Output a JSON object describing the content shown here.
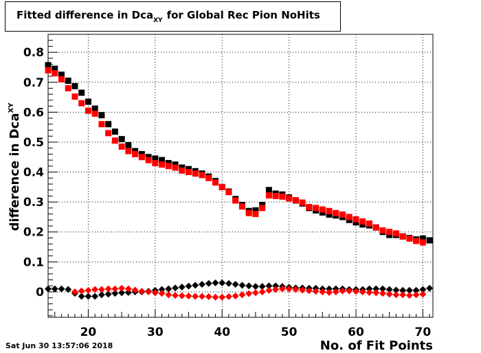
{
  "chart_data": {
    "type": "scatter",
    "title": {
      "main": "Fitted difference in Dca",
      "subscript": "XY",
      "rest": "for Global Rec Pion NoHits"
    },
    "xlabel": "No. of Fit Points",
    "ylabel": {
      "main": "difference in Dca",
      "subscript": "XY"
    },
    "xlim": [
      14,
      71.5
    ],
    "ylim": [
      -0.085,
      0.86
    ],
    "xticks": [
      20,
      30,
      40,
      50,
      60,
      70
    ],
    "yticks": [
      0,
      0.1,
      0.2,
      0.3,
      0.4,
      0.5,
      0.6,
      0.7,
      0.8
    ],
    "ytick_labels": [
      "0",
      "0.1",
      "0.2",
      "0.3",
      "0.4",
      "0.5",
      "0.6",
      "0.7",
      "0.8"
    ],
    "grid": true,
    "x": [
      14,
      15,
      16,
      17,
      18,
      19,
      20,
      21,
      22,
      23,
      24,
      25,
      26,
      27,
      28,
      29,
      30,
      31,
      32,
      33,
      34,
      35,
      36,
      37,
      38,
      39,
      40,
      41,
      42,
      43,
      44,
      45,
      46,
      47,
      48,
      49,
      50,
      51,
      52,
      53,
      54,
      55,
      56,
      57,
      58,
      59,
      60,
      61,
      62,
      63,
      64,
      65,
      66,
      67,
      68,
      69,
      70,
      71
    ],
    "series": [
      {
        "marker": "square",
        "color": "#000000",
        "values": [
          0.757,
          0.745,
          0.725,
          0.705,
          0.687,
          0.665,
          0.635,
          0.612,
          0.59,
          0.56,
          0.535,
          0.51,
          0.49,
          0.47,
          0.46,
          0.45,
          0.445,
          0.44,
          0.43,
          0.425,
          0.415,
          0.41,
          0.403,
          0.395,
          0.385,
          0.37,
          0.35,
          0.335,
          0.31,
          0.29,
          0.27,
          0.272,
          0.29,
          0.34,
          0.328,
          0.325,
          0.315,
          0.305,
          0.295,
          0.28,
          0.272,
          0.265,
          0.258,
          0.255,
          0.25,
          0.24,
          0.232,
          0.225,
          0.222,
          0.215,
          0.2,
          0.19,
          0.19,
          0.185,
          0.18,
          0.175,
          0.178,
          0.172
        ]
      },
      {
        "marker": "square",
        "color": "#ff0000",
        "values": [
          0.74,
          0.73,
          0.71,
          0.68,
          0.652,
          0.63,
          0.605,
          0.595,
          0.56,
          0.53,
          0.505,
          0.485,
          0.47,
          0.46,
          0.45,
          0.44,
          0.43,
          0.425,
          0.42,
          0.415,
          0.405,
          0.4,
          0.395,
          0.39,
          0.38,
          0.365,
          0.35,
          0.333,
          0.305,
          0.285,
          0.263,
          0.26,
          0.28,
          0.322,
          0.32,
          0.318,
          0.312,
          0.306,
          0.298,
          0.283,
          0.28,
          0.275,
          0.27,
          0.263,
          0.258,
          0.25,
          0.242,
          0.235,
          0.228,
          0.215,
          0.205,
          0.2,
          0.195,
          0.185,
          0.178,
          0.17,
          0.165,
          null
        ]
      },
      {
        "marker": "diamond",
        "color": "#000000",
        "values": [
          0.01,
          0.01,
          0.01,
          0.008,
          -0.005,
          -0.015,
          -0.015,
          -0.015,
          -0.01,
          -0.008,
          -0.005,
          -0.003,
          -0.002,
          0.0,
          0.0,
          0.002,
          0.005,
          0.008,
          0.01,
          0.013,
          0.016,
          0.019,
          0.022,
          0.025,
          0.028,
          0.03,
          0.03,
          0.028,
          0.025,
          0.022,
          0.02,
          0.018,
          0.018,
          0.02,
          0.02,
          0.018,
          0.015,
          0.013,
          0.013,
          0.012,
          0.012,
          0.01,
          0.01,
          0.01,
          0.01,
          0.008,
          0.008,
          0.008,
          0.01,
          0.01,
          0.01,
          0.008,
          0.006,
          0.005,
          0.005,
          0.005,
          0.008,
          0.012
        ]
      },
      {
        "marker": "diamond",
        "color": "#ff0000",
        "values": [
          null,
          null,
          null,
          null,
          0.0,
          0.003,
          0.005,
          0.008,
          0.008,
          0.01,
          0.01,
          0.012,
          0.01,
          0.006,
          0.002,
          0.0,
          -0.003,
          -0.005,
          -0.01,
          -0.012,
          -0.013,
          -0.014,
          -0.015,
          -0.015,
          -0.016,
          -0.018,
          -0.018,
          -0.016,
          -0.014,
          -0.01,
          -0.006,
          -0.003,
          0.0,
          0.005,
          0.008,
          0.01,
          0.01,
          0.008,
          0.006,
          0.004,
          0.002,
          0.0,
          -0.002,
          0.0,
          0.003,
          0.003,
          0.002,
          0.0,
          -0.002,
          -0.003,
          -0.005,
          -0.008,
          -0.01,
          -0.01,
          -0.012,
          -0.01,
          -0.008,
          null
        ]
      }
    ]
  },
  "footer": {
    "timestamp": "Sat Jun 30 13:57:06 2018"
  }
}
